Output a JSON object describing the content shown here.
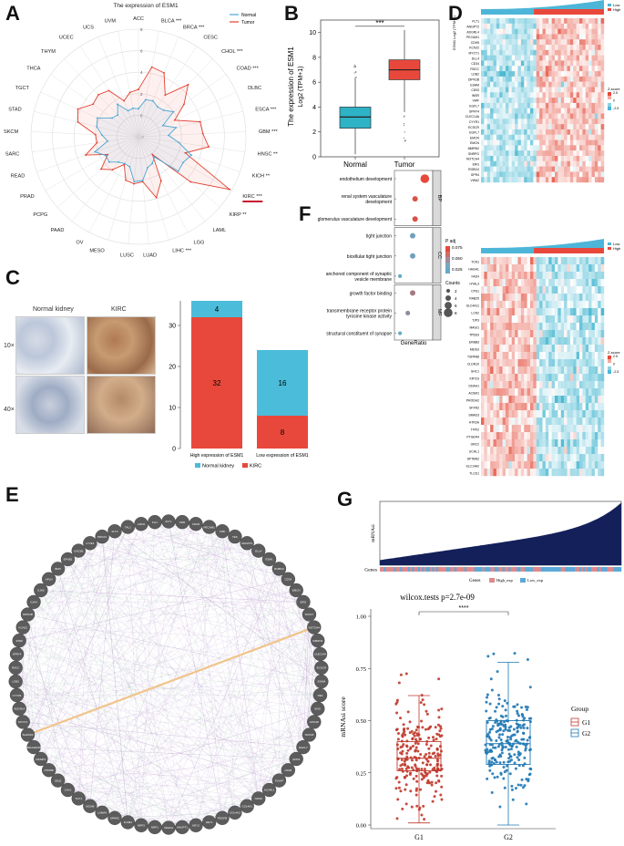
{
  "figure": {
    "panel_labels": [
      "A",
      "B",
      "C",
      "D",
      "E",
      "F",
      "G"
    ]
  },
  "panelA": {
    "title": "The expression of ESM1",
    "legend": [
      "Normal",
      "Tumor"
    ],
    "rings": [
      "-2",
      "0",
      "2",
      "4",
      "6",
      "8"
    ],
    "cancers": [
      "ACC",
      "BLCA ***",
      "BRCA ***",
      "CESC",
      "CHOL ***",
      "COAD ***",
      "DLBC",
      "ESCA ***",
      "GBM ***",
      "HNSC ***",
      "KICH **",
      "KIRC ***",
      "KIRP **",
      "LAML",
      "LGG",
      "LIHC ***",
      "LUAD",
      "LUSC",
      "MESO",
      "OV",
      "PAAD",
      "PCPG",
      "PRAD",
      "READ",
      "SARC",
      "SKCM",
      "STAD",
      "TGCT",
      "THCA",
      "THYM",
      "UCEC",
      "UCS",
      "UVM"
    ],
    "colors": {
      "normal": "#4aa6d6",
      "tumor": "#e2402f",
      "highlight": "#c8102e"
    }
  },
  "chart_data": [
    {
      "type": "radar",
      "title": "The expression of ESM1",
      "categories": [
        "ACC",
        "BLCA",
        "BRCA",
        "CESC",
        "CHOL",
        "COAD",
        "DLBC",
        "ESCA",
        "GBM",
        "HNSC",
        "KICH",
        "KIRC",
        "KIRP",
        "LAML",
        "LGG",
        "LIHC",
        "LUAD",
        "LUSC",
        "MESO",
        "OV",
        "PAAD",
        "PCPG",
        "PRAD",
        "READ",
        "SARC",
        "SKCM",
        "STAD",
        "TGCT",
        "THCA",
        "THYM",
        "UCEC",
        "UCS",
        "UVM"
      ],
      "series": [
        {
          "name": "Normal",
          "values": [
            0.6,
            1.5,
            1.6,
            1.3,
            1.4,
            2.0,
            0.5,
            1.6,
            0.8,
            1.8,
            3.2,
            2.8,
            2.9,
            0.4,
            0.8,
            1.0,
            2.1,
            2.2,
            0.9,
            0.8,
            1.0,
            1.6,
            1.5,
            2.3,
            0.9,
            1.4,
            2.0,
            2.2,
            1.0,
            0.8,
            1.6,
            0.6,
            0.7
          ]
        },
        {
          "name": "Tumor",
          "values": [
            2.4,
            4.6,
            4.4,
            2.6,
            4.7,
            3.2,
            1.7,
            3.9,
            4.0,
            4.6,
            2.6,
            7.8,
            4.4,
            0.1,
            2.6,
            3.9,
            2.2,
            2.4,
            2.2,
            0.9,
            1.9,
            2.6,
            1.3,
            3.2,
            1.9,
            2.0,
            3.8,
            4.2,
            3.2,
            3.4,
            3.1,
            1.6,
            2.2
          ]
        }
      ],
      "rlim": [
        -2,
        8
      ]
    },
    {
      "type": "box",
      "categories": [
        "Normal",
        "Tumor"
      ],
      "ylabel": "The expression of ESM1 Log2 (TPM+1)",
      "ylim": [
        0,
        11
      ],
      "yticks": [
        "0",
        "2",
        "4",
        "6",
        "8",
        "10"
      ],
      "boxes": [
        {
          "name": "Normal",
          "q1": 2.3,
          "median": 3.2,
          "q3": 4.0,
          "whisker_low": 0.2,
          "whisker_high": 6.4,
          "color": "#2eb2c6"
        },
        {
          "name": "Tumor",
          "q1": 6.2,
          "median": 7.0,
          "q3": 7.8,
          "whisker_low": 3.6,
          "whisker_high": 10.2,
          "color": "#e8483b"
        }
      ],
      "annotation": "***"
    },
    {
      "type": "bar",
      "categories": [
        "High expression of ESM1",
        "Low expression of ESM1"
      ],
      "series": [
        {
          "name": "KIRC",
          "values": [
            32,
            8
          ],
          "color": "#e8483b"
        },
        {
          "name": "Normal kidney",
          "values": [
            4,
            16
          ],
          "color": "#4bbcd9"
        }
      ],
      "ylim": [
        0,
        36
      ],
      "yticks": [
        "0",
        "10",
        "20",
        "30"
      ]
    },
    {
      "type": "scatter",
      "title": "",
      "categories": [
        "endothelium development",
        "renal system vasculature development",
        "glomerulus vasculature development",
        "tight junction",
        "bicellular tight junction",
        "anchored component of synaptic vesicle membrane",
        "growth factor binding",
        "transmembrane receptor protein tyrosine kinase activity",
        "structural constituent of synapse"
      ],
      "groups": [
        "BP",
        "BP",
        "BP",
        "CC",
        "CC",
        "CC",
        "MF",
        "MF",
        "MF"
      ],
      "gene_ratio": [
        0.55,
        0.35,
        0.35,
        0.3,
        0.3,
        0.04,
        0.3,
        0.2,
        0.04
      ],
      "counts": [
        8,
        4,
        4,
        4,
        4,
        2,
        4,
        3,
        2
      ],
      "p_adj": [
        0.025,
        0.03,
        0.03,
        0.07,
        0.07,
        0.075,
        0.05,
        0.06,
        0.075
      ],
      "xlabel": "GeneRatio",
      "legend_padj_title": "P adj",
      "legend_padj_ticks": [
        "0.075",
        "0.050",
        "0.025"
      ],
      "legend_counts_title": "Counts",
      "legend_counts_ticks": [
        "2",
        "4",
        "6",
        "8"
      ]
    },
    {
      "type": "box",
      "title": "wilcox.tests p=2.7e-09",
      "categories": [
        "G1",
        "G2"
      ],
      "ylabel": "mRNAsi score",
      "ylim": [
        0,
        1
      ],
      "yticks": [
        "0.00",
        "0.25",
        "0.50",
        "0.75",
        "1.00"
      ],
      "boxes": [
        {
          "name": "G1",
          "q1": 0.26,
          "median": 0.32,
          "q3": 0.4,
          "whisker_low": 0.01,
          "whisker_high": 0.62,
          "color": "#c0392b"
        },
        {
          "name": "G2",
          "q1": 0.29,
          "median": 0.39,
          "q3": 0.5,
          "whisker_low": 0.0,
          "whisker_high": 0.78,
          "color": "#1f78b4"
        }
      ],
      "annotation": "****",
      "legend_title": "Group"
    }
  ],
  "panelB": {
    "sig": "***",
    "xlabels": [
      "Normal",
      "Tumor"
    ],
    "ylabel1": "The expression of ESM1",
    "ylabel2": "Log2 (TPM+1)"
  },
  "panelC": {
    "img_titles": [
      "Normal kidney",
      "KIRC"
    ],
    "row_labels": [
      "10×",
      "40×"
    ],
    "legend": [
      "Normal kidney",
      "KIRC"
    ],
    "bar_labels": [
      "High expression of ESM1",
      "Low expression of ESM1"
    ],
    "bar_values": {
      "high_kirc": "32",
      "high_normal": "4",
      "low_kirc": "8",
      "low_normal": "16"
    }
  },
  "panelD": {
    "top_legend": [
      "Low",
      "High"
    ],
    "zscore_title": "Z-score",
    "zscore_ticks": [
      "2.5",
      "0",
      "-2.5"
    ],
    "top_label": "ESM1 Log2 (TPM+1)",
    "genes_top": [
      "FLT1",
      "ANGPT2",
      "ADGRL4",
      "PECAM1",
      "CDH5",
      "KCNJ2",
      "MYCT1",
      "DLL4",
      "CD34",
      "RSCC",
      "LDB2",
      "DIPK2B",
      "ESAM",
      "CD93",
      "INSR",
      "VWF",
      "EGFL7",
      "SPRY4",
      "CLEC14A",
      "CYYR1",
      "ECSCR",
      "EGFL7",
      "EMCN",
      "EMCN",
      "MMRN2",
      "SNRPG",
      "NOTCH4",
      "ERG",
      "ROBO4",
      "GPR4",
      "VWA2"
    ],
    "genes_bottom": [
      "TCN1",
      "HAGHL",
      "FA2H",
      "HYAL3",
      "CPS1",
      "RAB25",
      "SLC4A11",
      "LCN2",
      "TJP3",
      "MAGI1",
      "TP53I3",
      "ERBB3",
      "MEIS3",
      "TSPAN8",
      "CLDN10",
      "SHC1",
      "KRT23",
      "DDAH1",
      "ACSM1",
      "PRODH2",
      "SFXN2",
      "SMAD3",
      "HTR2A",
      "TFPI2",
      "PTGER4",
      "ORC2",
      "UCHL1",
      "SPTBN2",
      "SLC14A2",
      "TLCD1"
    ]
  },
  "panelE": {
    "nodes": [
      "FLT1",
      "KDR",
      "CDH5",
      "PECAM1",
      "VWF",
      "TEK",
      "ANGPT2",
      "DLL4",
      "ESM1",
      "ROBO4",
      "CD34",
      "EMCN",
      "ERG",
      "SOX17",
      "NOTCH4",
      "MMRN2",
      "CLEC14A",
      "ECSCR",
      "ESAM",
      "TIE1",
      "ENG",
      "APLNR",
      "SOX18",
      "EGFL7",
      "GPR4",
      "CD93",
      "PLVAP",
      "ACVRL1",
      "NOS3",
      "COL4A1",
      "COL4A2",
      "PDGFB",
      "HEY1",
      "HEY2",
      "ANGPT1",
      "VEGFA",
      "NRP1",
      "NRP2",
      "ICAM2",
      "SPARC",
      "LAMA4",
      "MCAM",
      "THY1",
      "CAV1",
      "SELE",
      "PTPRB",
      "RASIP1",
      "ARHGEF15",
      "SHANK3",
      "MYCT1",
      "ADGRL4",
      "CYYR1",
      "LDB2",
      "RSCC",
      "SPRY4",
      "INSR",
      "KCNJ2",
      "DIPK2B",
      "GJA4",
      "GJA5",
      "APLN",
      "BMX",
      "EFNB2",
      "UNC5B",
      "LYVE1",
      "PROX1",
      "FLT4",
      "TAL1",
      "LMO2",
      "FLI1"
    ]
  },
  "panelG": {
    "top_ylabel": "mRNAsi",
    "genes_label": "Genes",
    "genes_legend_title": "Genes",
    "genes_legend": [
      "High_exp",
      "Low_exp"
    ],
    "title": "wilcox.tests p=2.7e-09",
    "sig": "****",
    "group_title": "Group",
    "groups": [
      "G1",
      "G2"
    ]
  }
}
